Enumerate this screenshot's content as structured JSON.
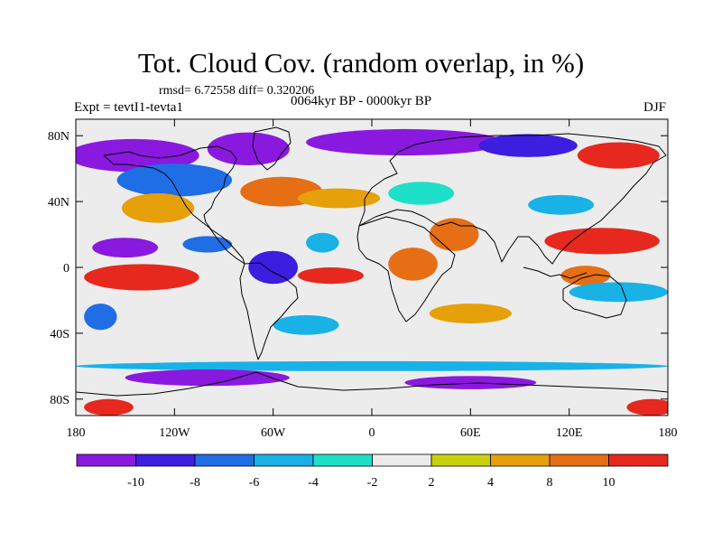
{
  "title": "Tot. Cloud Cov. (random overlap, in %)",
  "stats": "rmsd= 6.72558 diff= 0.320206",
  "experiment": "Expt = tevtI1-tevta1",
  "period": "0064kyr BP - 0000kyr BP",
  "season": "DJF",
  "axes": {
    "x_ticks": [
      {
        "value": -180,
        "label": "180"
      },
      {
        "value": -120,
        "label": "120W"
      },
      {
        "value": -60,
        "label": "60W"
      },
      {
        "value": 0,
        "label": "0"
      },
      {
        "value": 60,
        "label": "60E"
      },
      {
        "value": 120,
        "label": "120E"
      },
      {
        "value": 180,
        "label": "180"
      }
    ],
    "y_ticks": [
      {
        "value": 80,
        "label": "80N"
      },
      {
        "value": 40,
        "label": "40N"
      },
      {
        "value": 0,
        "label": "0"
      },
      {
        "value": -40,
        "label": "40S"
      },
      {
        "value": -80,
        "label": "80S"
      }
    ],
    "lon_range": [
      -180,
      180
    ],
    "lat_range": [
      -90,
      90
    ]
  },
  "colorbar": {
    "bins": [
      {
        "color": "#8a19e0"
      },
      {
        "color": "#3c1ee0"
      },
      {
        "color": "#1f6ee6"
      },
      {
        "color": "#18b2e6"
      },
      {
        "color": "#1ee0c8"
      },
      {
        "color": "#ececec"
      },
      {
        "color": "#c8d20a"
      },
      {
        "color": "#e6a00a"
      },
      {
        "color": "#e66e14"
      },
      {
        "color": "#e6281e"
      }
    ],
    "labels": [
      "-10",
      "-8",
      "-6",
      "-4",
      "-2",
      "2",
      "4",
      "8",
      "10"
    ]
  },
  "map_anomalies": [
    {
      "lon": -145,
      "lat": 68,
      "rx": 40,
      "ry": 10,
      "level": 0
    },
    {
      "lon": -75,
      "lat": 72,
      "rx": 25,
      "ry": 10,
      "level": 0
    },
    {
      "lon": 20,
      "lat": 76,
      "rx": 60,
      "ry": 8,
      "level": 0
    },
    {
      "lon": 95,
      "lat": 74,
      "rx": 30,
      "ry": 7,
      "level": 1
    },
    {
      "lon": 150,
      "lat": 68,
      "rx": 25,
      "ry": 8,
      "level": 9
    },
    {
      "lon": -120,
      "lat": 53,
      "rx": 35,
      "ry": 10,
      "level": 2
    },
    {
      "lon": -130,
      "lat": 36,
      "rx": 22,
      "ry": 9,
      "level": 7
    },
    {
      "lon": -55,
      "lat": 46,
      "rx": 25,
      "ry": 9,
      "level": 8
    },
    {
      "lon": -20,
      "lat": 42,
      "rx": 25,
      "ry": 6,
      "level": 7
    },
    {
      "lon": -150,
      "lat": 12,
      "rx": 20,
      "ry": 6,
      "level": 0
    },
    {
      "lon": -100,
      "lat": 14,
      "rx": 15,
      "ry": 5,
      "level": 2
    },
    {
      "lon": -30,
      "lat": 15,
      "rx": 10,
      "ry": 6,
      "level": 3
    },
    {
      "lon": 50,
      "lat": 20,
      "rx": 15,
      "ry": 10,
      "level": 8
    },
    {
      "lon": 140,
      "lat": 16,
      "rx": 35,
      "ry": 8,
      "level": 9
    },
    {
      "lon": 30,
      "lat": 45,
      "rx": 20,
      "ry": 7,
      "level": 4
    },
    {
      "lon": 115,
      "lat": 38,
      "rx": 20,
      "ry": 6,
      "level": 3
    },
    {
      "lon": -140,
      "lat": -6,
      "rx": 35,
      "ry": 8,
      "level": 9
    },
    {
      "lon": -60,
      "lat": 0,
      "rx": 15,
      "ry": 10,
      "level": 1
    },
    {
      "lon": -25,
      "lat": -5,
      "rx": 20,
      "ry": 5,
      "level": 9
    },
    {
      "lon": 25,
      "lat": 2,
      "rx": 15,
      "ry": 10,
      "level": 8
    },
    {
      "lon": 130,
      "lat": -5,
      "rx": 15,
      "ry": 6,
      "level": 8
    },
    {
      "lon": -165,
      "lat": -30,
      "rx": 10,
      "ry": 8,
      "level": 2
    },
    {
      "lon": -40,
      "lat": -35,
      "rx": 20,
      "ry": 6,
      "level": 3
    },
    {
      "lon": 60,
      "lat": -28,
      "rx": 25,
      "ry": 6,
      "level": 7
    },
    {
      "lon": 150,
      "lat": -15,
      "rx": 30,
      "ry": 6,
      "level": 3
    },
    {
      "lon": 0,
      "lat": -60,
      "rx": 180,
      "ry": 3,
      "level": 3
    },
    {
      "lon": -100,
      "lat": -67,
      "rx": 50,
      "ry": 5,
      "level": 0
    },
    {
      "lon": 60,
      "lat": -70,
      "rx": 40,
      "ry": 4,
      "level": 0
    },
    {
      "lon": -160,
      "lat": -85,
      "rx": 15,
      "ry": 5,
      "level": 9
    },
    {
      "lon": 170,
      "lat": -85,
      "rx": 15,
      "ry": 5,
      "level": 9
    }
  ]
}
